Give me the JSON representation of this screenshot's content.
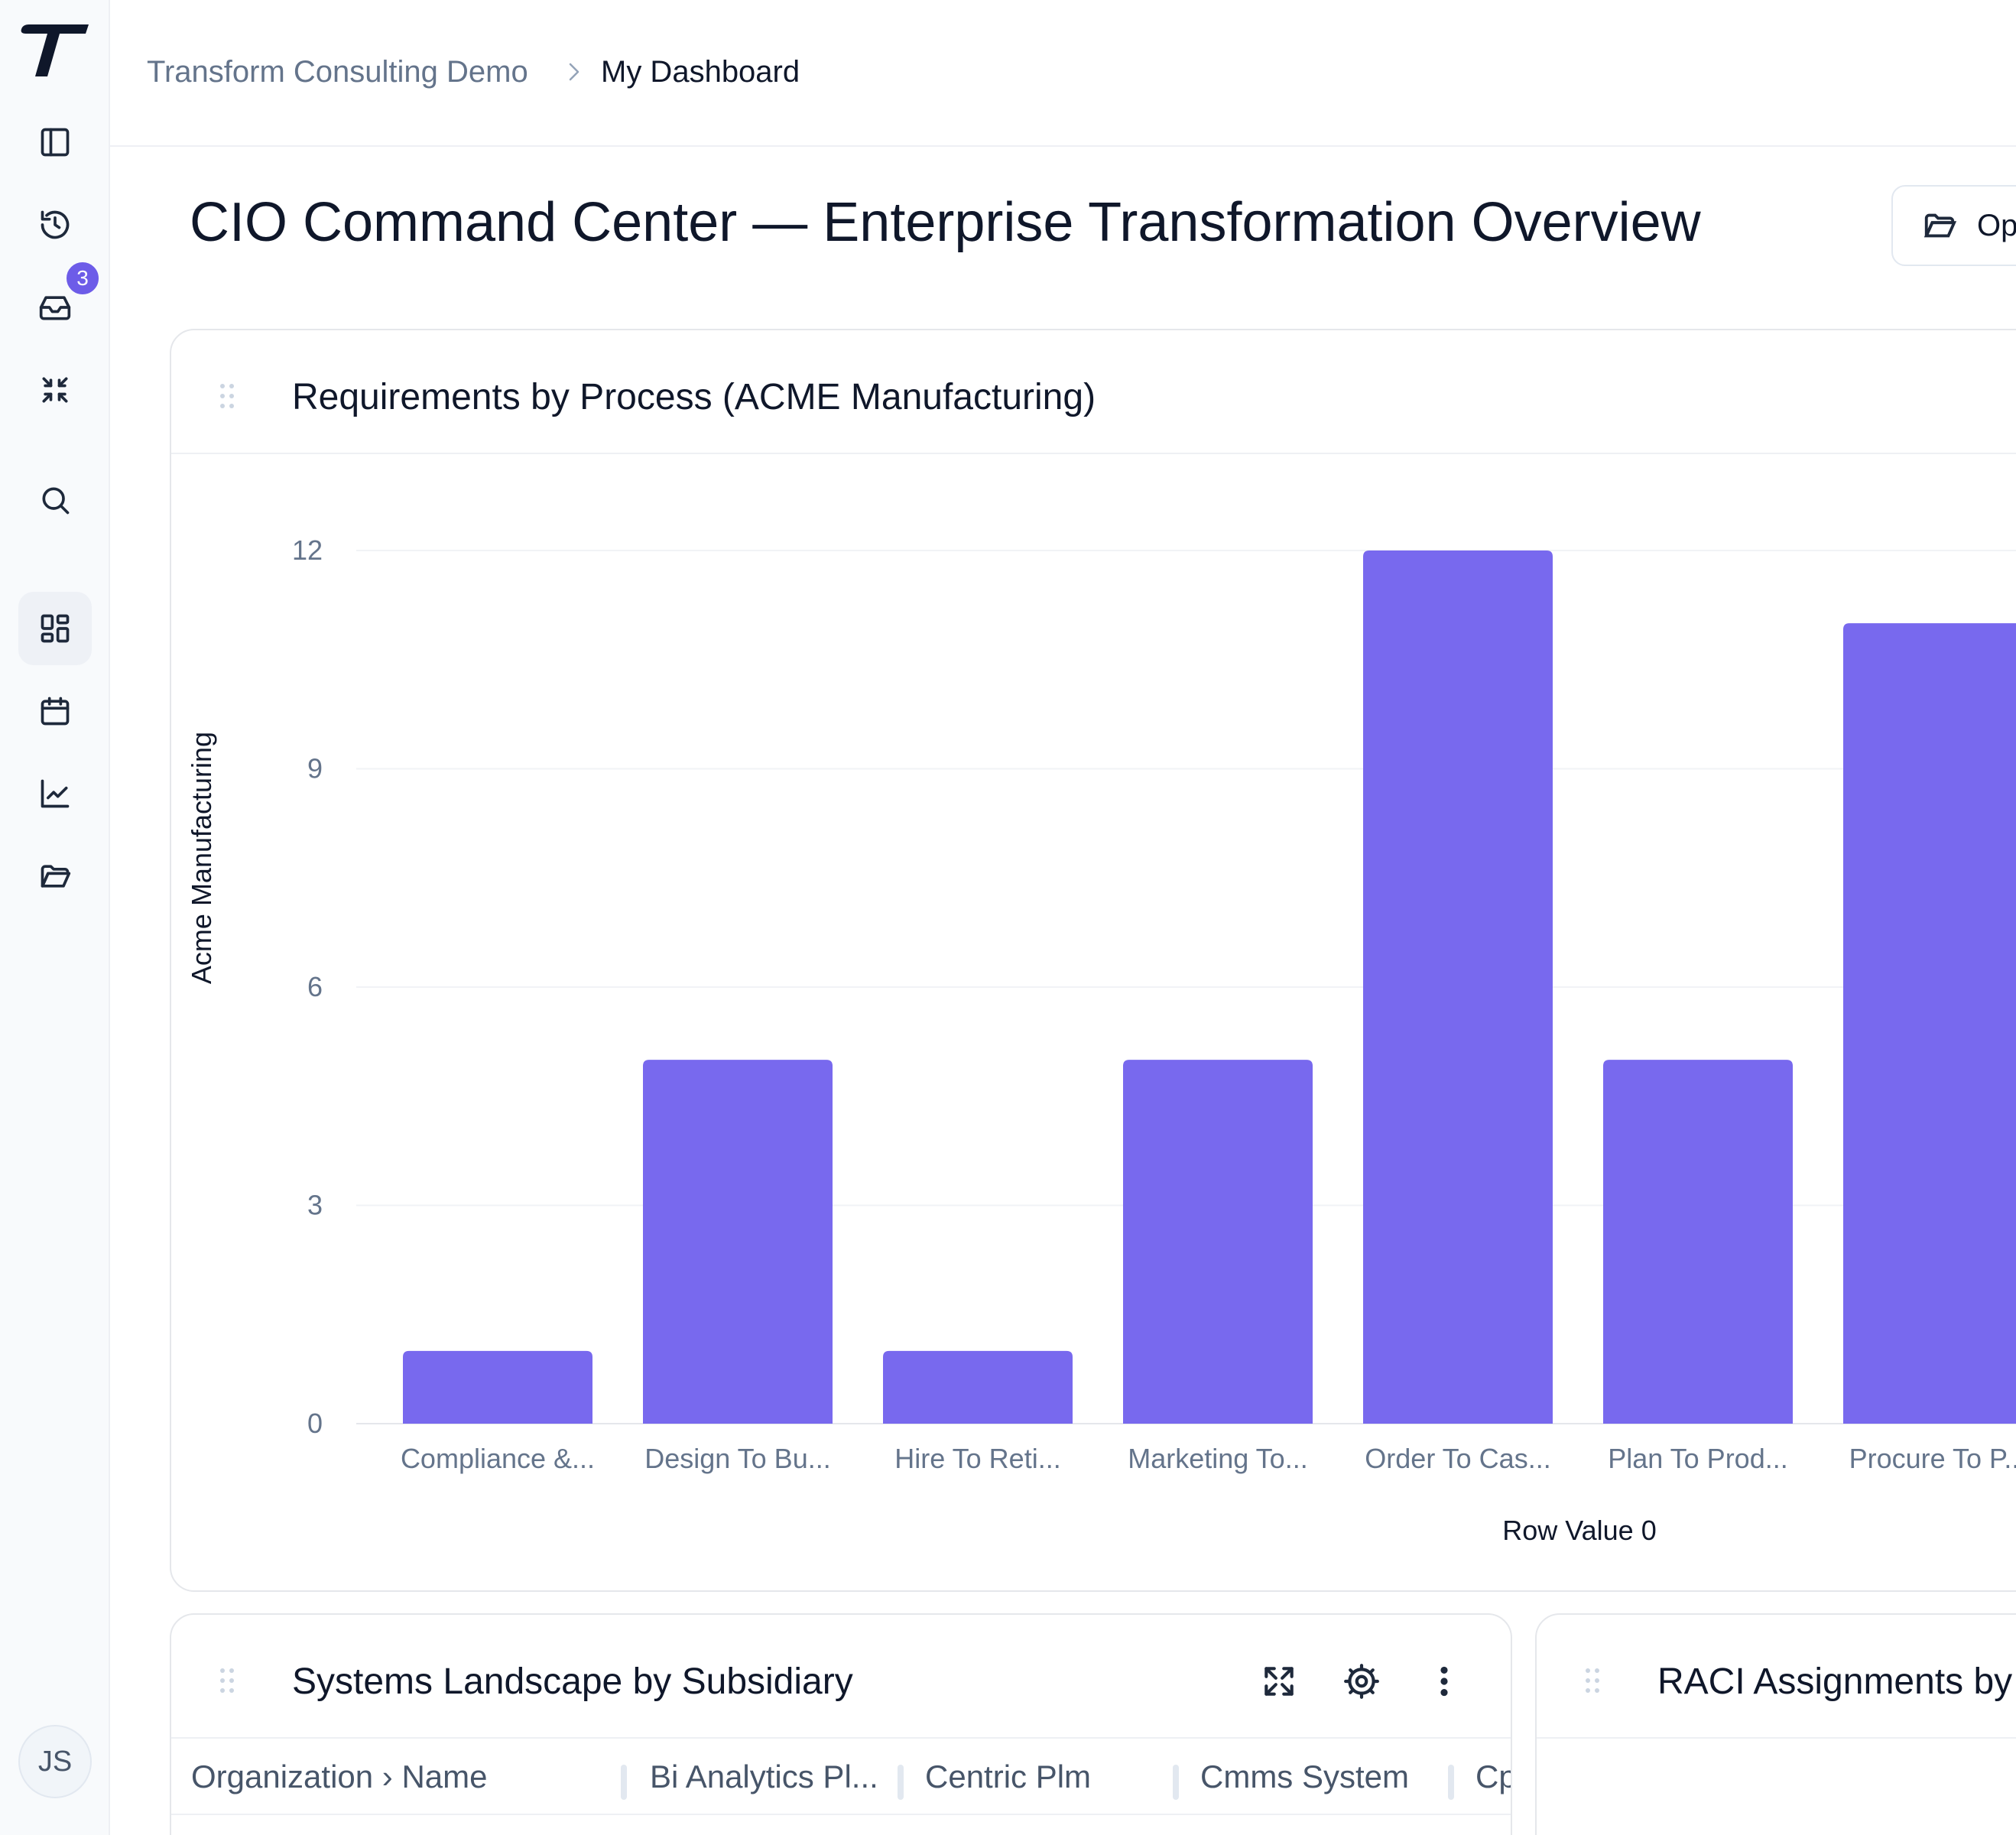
{
  "sidebar": {
    "notification_count": "3",
    "user_initials": "JS",
    "items": [
      {
        "icon": "panel-toggle-icon"
      },
      {
        "icon": "history-icon"
      },
      {
        "icon": "inbox-icon"
      },
      {
        "icon": "collapse-icon"
      },
      {
        "icon": "search-icon"
      },
      {
        "icon": "dashboard-icon"
      },
      {
        "icon": "calendar-icon"
      },
      {
        "icon": "chart-icon"
      },
      {
        "icon": "folder-icon"
      }
    ]
  },
  "breadcrumb": {
    "root": "Transform Consulting Demo",
    "current": "My Dashboard"
  },
  "page": {
    "title": "CIO Command Center — Enterprise Transformation Overview",
    "open_button_label": "Op"
  },
  "panels": {
    "requirements": {
      "title": "Requirements by Process (ACME Manufacturing)"
    },
    "systems": {
      "title": "Systems Landscape by Subsidiary",
      "columns": [
        "Organization › Name",
        "Bi Analytics Pl...",
        "Centric Plm",
        "Cmms System",
        "Cp"
      ]
    },
    "raci": {
      "title": "RACI Assignments by"
    }
  },
  "chart_data": {
    "type": "bar",
    "categories": [
      "Compliance &...",
      "Design To Bu...",
      "Hire To Reti...",
      "Marketing To...",
      "Order To Cas...",
      "Plan To Prod...",
      "Procure To P..."
    ],
    "values": [
      1,
      5,
      1,
      5,
      12,
      5,
      11
    ],
    "yticks": [
      "0",
      "3",
      "6",
      "9",
      "12"
    ],
    "ylim": [
      0,
      12
    ],
    "xlabel": "Row Value 0",
    "ylabel": "Acme Manufacturing",
    "grid": true,
    "bar_color": "#7869ee"
  }
}
